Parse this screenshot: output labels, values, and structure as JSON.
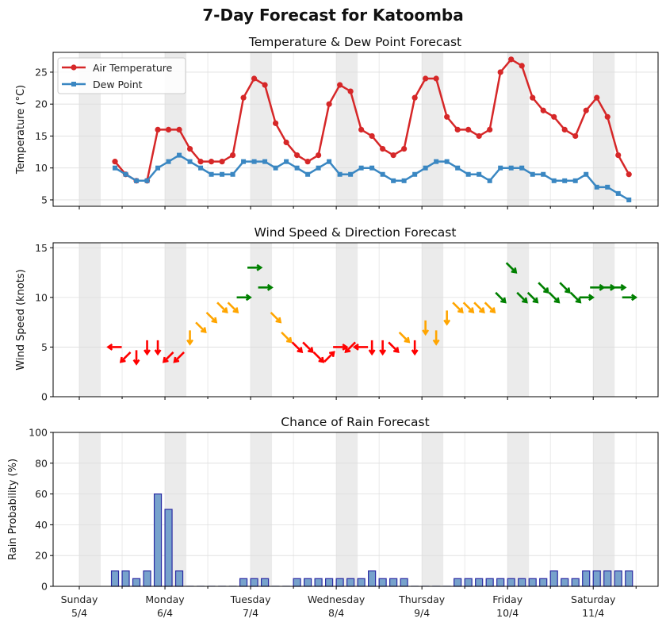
{
  "title": "7-Day Forecast for Katoomba",
  "colors": {
    "air_temperature": "#d62728",
    "dew_point": "#3a87c2",
    "night_shading": "#ebebeb",
    "rain_fill": "#77a2cc",
    "rain_edge": "#2b2ba3",
    "wind_light": "#ff0000",
    "wind_moderate": "#ffa500",
    "wind_strong": "#008000"
  },
  "chart_data": [
    {
      "type": "line",
      "title": "Temperature & Dew Point Forecast",
      "ylabel": "Temperature (°C)",
      "ylim": [
        4.0,
        28.1
      ],
      "yticks": [
        5,
        10,
        15,
        20,
        25
      ],
      "grid": true,
      "legend": "top-left",
      "night_shading": "00:00-06:00 daily",
      "series": [
        {
          "name": "Air Temperature",
          "marker": "circle",
          "values": [
            11,
            9,
            8,
            8,
            16,
            16,
            16,
            13,
            11,
            11,
            11,
            12,
            21,
            24,
            23,
            17,
            14,
            12,
            11,
            12,
            20,
            23,
            22,
            16,
            15,
            13,
            12,
            13,
            21,
            24,
            24,
            18,
            16,
            16,
            15,
            16,
            25,
            27,
            26,
            21,
            19,
            18,
            16,
            15,
            19,
            21,
            18,
            12,
            9
          ]
        },
        {
          "name": "Dew Point",
          "marker": "square",
          "values": [
            10,
            9,
            8,
            8,
            10,
            11,
            12,
            11,
            10,
            9,
            9,
            9,
            11,
            11,
            11,
            10,
            11,
            10,
            9,
            10,
            11,
            9,
            9,
            10,
            10,
            9,
            8,
            8,
            9,
            10,
            11,
            11,
            10,
            9,
            9,
            8,
            10,
            10,
            10,
            9,
            9,
            8,
            8,
            8,
            9,
            7,
            7,
            6,
            5
          ]
        }
      ]
    },
    {
      "type": "scatter",
      "title": "Wind Speed & Direction Forecast",
      "ylabel": "Wind Speed (knots)",
      "ylim": [
        0,
        15.5
      ],
      "yticks": [
        0,
        5,
        10,
        15
      ],
      "grid": true,
      "marker": "arrow pointing downwind",
      "speed": [
        5,
        4,
        4,
        5,
        5,
        4,
        4,
        6,
        7,
        8,
        9,
        9,
        10,
        13,
        11,
        8,
        6,
        5,
        5,
        4,
        4,
        5,
        5,
        5,
        5,
        5,
        5,
        6,
        5,
        7,
        6,
        8,
        9,
        9,
        9,
        9,
        10,
        13,
        10,
        10,
        11,
        10,
        11,
        10,
        10,
        11,
        11,
        11,
        10
      ],
      "direction_from_deg": [
        90,
        45,
        0,
        0,
        0,
        45,
        45,
        0,
        315,
        315,
        315,
        315,
        270,
        270,
        270,
        315,
        315,
        315,
        315,
        315,
        225,
        270,
        45,
        90,
        0,
        0,
        315,
        315,
        0,
        0,
        0,
        0,
        315,
        315,
        315,
        315,
        315,
        315,
        315,
        315,
        315,
        315,
        315,
        315,
        270,
        270,
        270,
        270,
        270
      ]
    },
    {
      "type": "bar",
      "title": "Chance of Rain Forecast",
      "ylabel": "Rain Probability (%)",
      "ylim": [
        0,
        100
      ],
      "yticks": [
        0,
        20,
        40,
        60,
        80,
        100
      ],
      "grid": true,
      "values": [
        10,
        10,
        5,
        10,
        60,
        50,
        10,
        0,
        0,
        0,
        0,
        0,
        5,
        5,
        5,
        0,
        0,
        5,
        5,
        5,
        5,
        5,
        5,
        5,
        10,
        5,
        5,
        5,
        0,
        0,
        0,
        0,
        5,
        5,
        5,
        5,
        5,
        5,
        5,
        5,
        5,
        10,
        5,
        5,
        10,
        10,
        10,
        10,
        10
      ]
    }
  ],
  "x": {
    "start": "5/4 10:00",
    "step_hours": 3,
    "xlim": [
      "4/4 16:40",
      "11/4 18:10"
    ],
    "day_ticks": [
      {
        "day": "Sunday",
        "date": "5/4"
      },
      {
        "day": "Monday",
        "date": "6/4"
      },
      {
        "day": "Tuesday",
        "date": "7/4"
      },
      {
        "day": "Wednesday",
        "date": "8/4"
      },
      {
        "day": "Thursday",
        "date": "9/4"
      },
      {
        "day": "Friday",
        "date": "10/4"
      },
      {
        "day": "Saturday",
        "date": "11/4"
      }
    ]
  }
}
